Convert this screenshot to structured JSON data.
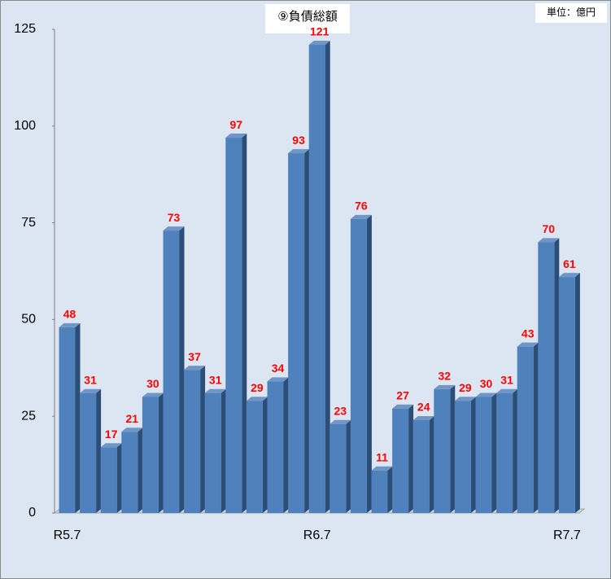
{
  "chart_data": {
    "type": "bar",
    "title": "⑨負債総額",
    "unit_label": "単位：億円",
    "categories": [
      "R5.7",
      null,
      null,
      null,
      null,
      null,
      null,
      null,
      null,
      null,
      null,
      null,
      "R6.7",
      null,
      null,
      null,
      null,
      null,
      null,
      null,
      null,
      null,
      null,
      null,
      "R7.7"
    ],
    "values": [
      48,
      31,
      17,
      21,
      30,
      73,
      37,
      31,
      97,
      29,
      34,
      93,
      121,
      23,
      76,
      11,
      27,
      24,
      32,
      29,
      30,
      31,
      43,
      70,
      61
    ],
    "color": "#4f81bd",
    "label_color": "#ff0000",
    "ylim": [
      0,
      125
    ],
    "yticks": [
      0,
      25,
      50,
      75,
      100,
      125
    ],
    "grid": false
  }
}
